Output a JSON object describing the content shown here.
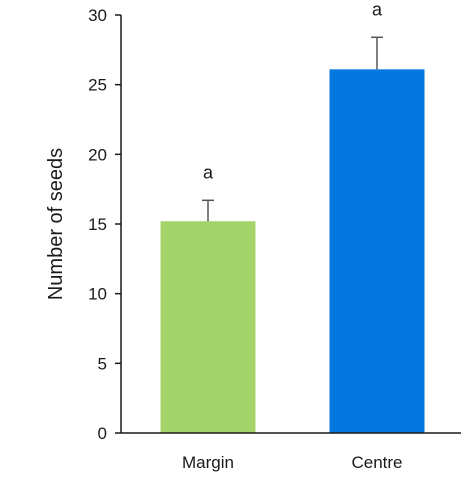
{
  "chart_data": {
    "type": "bar",
    "title": "",
    "xlabel": "",
    "ylabel": "Number of seeds",
    "ylim": [
      0,
      30
    ],
    "yticks": [
      0,
      5,
      10,
      15,
      20,
      25,
      30
    ],
    "categories": [
      "Margin",
      "Centre"
    ],
    "values": [
      15.2,
      26.1
    ],
    "errors": [
      1.5,
      2.3
    ],
    "significance_labels": [
      "a",
      "a"
    ],
    "colors": [
      "#a4d36b",
      "#0478de"
    ],
    "grid": false,
    "legend": "none"
  }
}
